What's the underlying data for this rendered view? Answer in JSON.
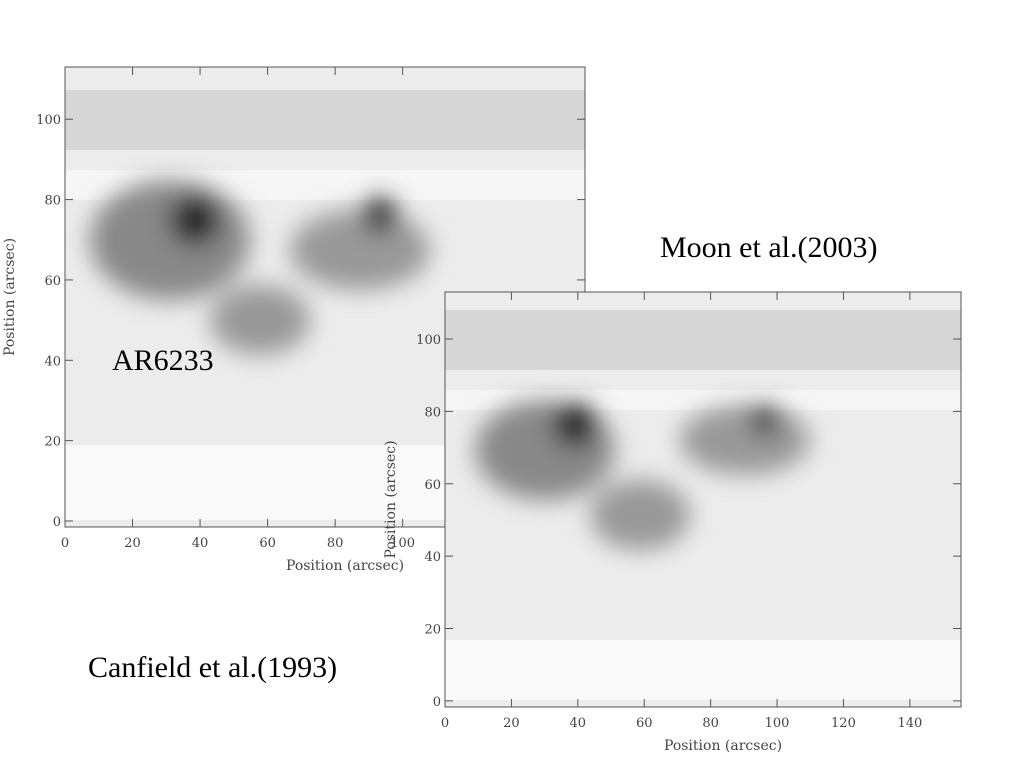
{
  "chart_data": [
    {
      "type": "image",
      "xlabel": "Position (arcsec)",
      "ylabel": "Position (arcsec)",
      "xlim": [
        0,
        154
      ],
      "ylim": [
        -1.5,
        113
      ],
      "xticks": [
        0,
        20,
        40,
        60,
        80,
        100
      ],
      "yticks": [
        0,
        20,
        40,
        60,
        80,
        100
      ],
      "annotation": "AR6233",
      "caption": "Canfield et al.(1993)"
    },
    {
      "type": "image",
      "xlabel": "Position (arcsec)",
      "ylabel": "Position (arcsec)",
      "xlim": [
        0,
        155.4
      ],
      "ylim": [
        -1.7,
        113
      ],
      "xticks": [
        0,
        20,
        40,
        60,
        80,
        100,
        120,
        140
      ],
      "yticks": [
        0,
        20,
        40,
        60,
        80,
        100
      ],
      "caption": "Moon et al.(2003)"
    }
  ]
}
